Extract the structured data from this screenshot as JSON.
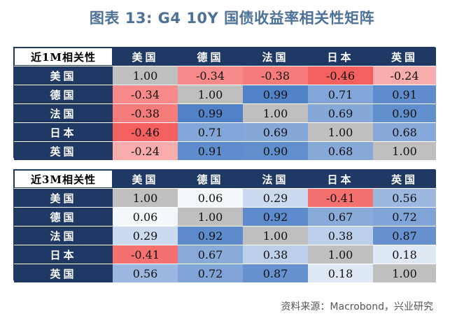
{
  "title": "图表 13: G4 10Y 国债收益率相关性矩阵",
  "source": "资料来源：Macrobond，兴业研究",
  "colors": {
    "header_bg": "#1f3864",
    "diag": "#bfbfbf",
    "positive_strong": "#4f81c7",
    "negative_strong": "#f4605f",
    "title": "#4e7199"
  },
  "chart_data": [
    {
      "type": "heatmap",
      "title": "近1M相关性",
      "categories": [
        "美国",
        "德国",
        "法国",
        "日本",
        "英国"
      ],
      "values": [
        [
          1.0,
          -0.34,
          -0.38,
          -0.46,
          -0.24
        ],
        [
          -0.34,
          1.0,
          0.99,
          0.71,
          0.91
        ],
        [
          -0.38,
          0.99,
          1.0,
          0.69,
          0.9
        ],
        [
          -0.46,
          0.71,
          0.69,
          1.0,
          0.68
        ],
        [
          -0.24,
          0.91,
          0.9,
          0.68,
          1.0
        ]
      ]
    },
    {
      "type": "heatmap",
      "title": "近3M相关性",
      "categories": [
        "美国",
        "德国",
        "法国",
        "日本",
        "英国"
      ],
      "values": [
        [
          1.0,
          0.06,
          0.29,
          -0.41,
          0.56
        ],
        [
          0.06,
          1.0,
          0.92,
          0.67,
          0.72
        ],
        [
          0.29,
          0.92,
          1.0,
          0.38,
          0.87
        ],
        [
          -0.41,
          0.67,
          0.38,
          1.0,
          0.18
        ],
        [
          0.56,
          0.72,
          0.87,
          0.18,
          1.0
        ]
      ]
    }
  ]
}
